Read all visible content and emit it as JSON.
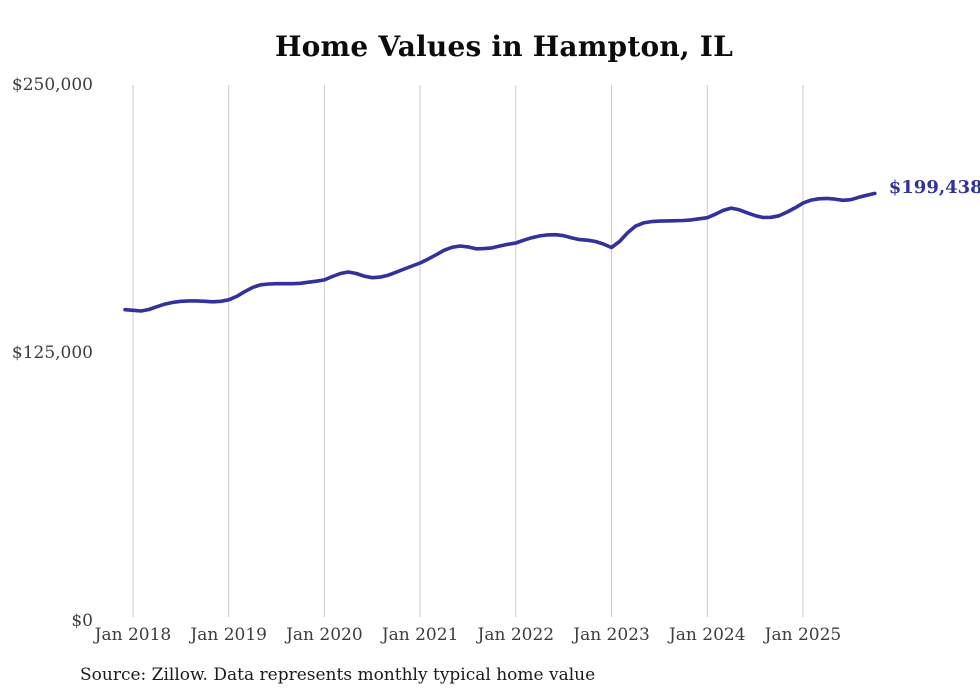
{
  "title": "Home Values in Hampton, IL",
  "source_note": "Source: Zillow. Data represents monthly typical home value",
  "colors": {
    "line": "#32329c",
    "end_label": "#32329c",
    "grid": "#cbcbcb",
    "axis_text": "#3d3d3d",
    "title_text": "#0c0c0c",
    "background": "#ffffff"
  },
  "chart_data": {
    "type": "line",
    "title": "Home Values in Hampton, IL",
    "xlabel": "",
    "ylabel": "",
    "ylim": [
      0,
      250000
    ],
    "grid": "vertical-only",
    "legend": "none",
    "interval": "monthly",
    "start_month": "2017-12",
    "end_month": "2025-10",
    "final_value": 199438,
    "final_value_label": "$199,438",
    "y_ticks": [
      {
        "value": 0,
        "label": "$0"
      },
      {
        "value": 125000,
        "label": "$125,000"
      },
      {
        "value": 250000,
        "label": "$250,000"
      }
    ],
    "x_ticks": [
      {
        "month_index": 1,
        "label": "Jan 2018"
      },
      {
        "month_index": 13,
        "label": "Jan 2019"
      },
      {
        "month_index": 25,
        "label": "Jan 2020"
      },
      {
        "month_index": 37,
        "label": "Jan 2021"
      },
      {
        "month_index": 49,
        "label": "Jan 2022"
      },
      {
        "month_index": 61,
        "label": "Jan 2023"
      },
      {
        "month_index": 73,
        "label": "Jan 2024"
      },
      {
        "month_index": 85,
        "label": "Jan 2025"
      }
    ],
    "series": [
      {
        "name": "Typical home value",
        "values": [
          145200,
          144900,
          144600,
          145300,
          146600,
          147800,
          148600,
          149100,
          149300,
          149300,
          149100,
          148900,
          149100,
          149800,
          151400,
          153600,
          155600,
          156800,
          157200,
          157300,
          157300,
          157300,
          157500,
          158000,
          158500,
          159100,
          160700,
          162100,
          162800,
          162100,
          160800,
          160100,
          160400,
          161300,
          162700,
          164200,
          165600,
          167000,
          168800,
          170800,
          172900,
          174300,
          174900,
          174500,
          173600,
          173700,
          174000,
          174900,
          175700,
          176300,
          177600,
          178800,
          179600,
          180100,
          180200,
          179700,
          178700,
          177900,
          177600,
          177000,
          175800,
          174200,
          177000,
          181000,
          184200,
          185700,
          186300,
          186500,
          186600,
          186700,
          186800,
          187100,
          187600,
          188100,
          189700,
          191500,
          192600,
          191800,
          190400,
          189100,
          188200,
          188300,
          189000,
          190700,
          192700,
          194900,
          196300,
          196900,
          197100,
          196800,
          196200,
          196500,
          197600,
          198600,
          199438
        ]
      }
    ]
  }
}
